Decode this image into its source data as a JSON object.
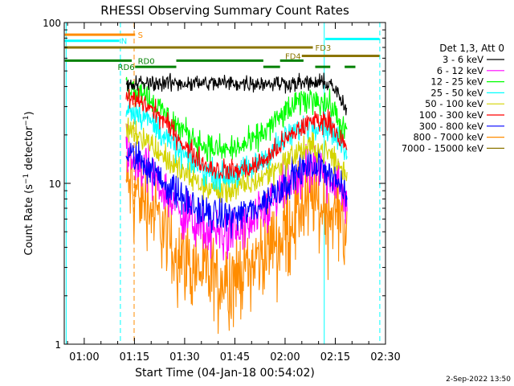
{
  "chart_data": {
    "type": "line",
    "title": "RHESSI Observing Summary Count Rates",
    "xlabel": "Start Time (04-Jan-18 00:54:02)",
    "ylabel": "Count Rate (s⁻¹ detector⁻¹)",
    "ylabel_parts": {
      "main": "Count Rate (s",
      "exp1": "−1",
      "mid": " detector",
      "exp2": "−1",
      "end": ")"
    },
    "yscale": "log",
    "ylim": [
      1,
      100
    ],
    "xlim_minutes": [
      54.03,
      150.0
    ],
    "y_ticks": [
      {
        "value": 1,
        "label": "1"
      },
      {
        "value": 10,
        "label": "10"
      },
      {
        "value": 100,
        "label": "100"
      }
    ],
    "x_ticks": [
      {
        "value": 60,
        "label": "01:00"
      },
      {
        "value": 75,
        "label": "01:15"
      },
      {
        "value": 90,
        "label": "01:30"
      },
      {
        "value": 105,
        "label": "01:45"
      },
      {
        "value": 120,
        "label": "02:00"
      },
      {
        "value": 135,
        "label": "02:15"
      },
      {
        "value": 150,
        "label": "02:30"
      }
    ],
    "legend_title": "Det 1,3, Att 0",
    "legend_position": "right",
    "series": [
      {
        "name": "3 - 6 keV",
        "color": "#000000",
        "profile": [
          40,
          42,
          42,
          42,
          42,
          42,
          42,
          42,
          42,
          42,
          42,
          42,
          42,
          42,
          28
        ],
        "noise": 0.06
      },
      {
        "name": "6 - 12 keV",
        "color": "#ff00ff",
        "profile": [
          15,
          13,
          10,
          7.5,
          6,
          5,
          4.8,
          5,
          5.5,
          7,
          9,
          11,
          12,
          11,
          8
        ],
        "noise": 0.18
      },
      {
        "name": "12 - 25 keV",
        "color": "#00ff00",
        "profile": [
          40,
          38,
          30,
          24,
          20,
          17,
          16,
          16.5,
          18,
          22,
          27,
          32,
          34,
          30,
          20
        ],
        "noise": 0.1
      },
      {
        "name": "25 - 50 keV",
        "color": "#00ffff",
        "profile": [
          30,
          27,
          22,
          17,
          14,
          12,
          11,
          11.5,
          12.5,
          15,
          18.5,
          22,
          24,
          22,
          15
        ],
        "noise": 0.1
      },
      {
        "name": "50 - 100 keV",
        "color": "#d4d400",
        "profile": [
          22,
          20,
          16,
          13,
          11,
          9.5,
          9,
          9.3,
          10,
          11.5,
          13.5,
          16,
          17,
          15,
          11
        ],
        "noise": 0.1
      },
      {
        "name": "100 - 300 keV",
        "color": "#ff0000",
        "profile": [
          34,
          32,
          27,
          21,
          16,
          13,
          12,
          12,
          12.5,
          14.5,
          18,
          22,
          25,
          24,
          16
        ],
        "noise": 0.08
      },
      {
        "name": "300 - 800 keV",
        "color": "#0000ff",
        "profile": [
          15,
          14,
          11,
          9,
          7.5,
          6.5,
          6.2,
          6.3,
          6.8,
          8,
          10,
          12,
          13,
          12,
          8
        ],
        "noise": 0.12
      },
      {
        "name": "800 - 7000 keV",
        "color": "#ff8c00",
        "profile": [
          10,
          8.5,
          6,
          4.2,
          3.2,
          2.8,
          2.6,
          2.8,
          3.2,
          4.2,
          5.5,
          7,
          8,
          7.5,
          6
        ],
        "noise": 0.3
      },
      {
        "name": "7000 - 15000 keV",
        "color": "#8b7500",
        "profile": [],
        "noise": 0
      }
    ],
    "series_time_range_minutes": [
      72.5,
      138.5
    ],
    "state_bars": [
      {
        "label": "S",
        "color": "#ff8c00",
        "y_rate": 84,
        "segments": [
          [
            54.2,
            75.2
          ]
        ],
        "label_at": 76
      },
      {
        "label": "N",
        "color": "#00ffff",
        "y_rate": 77,
        "segments": [
          [
            54.2,
            70.5
          ]
        ],
        "label_at": 71
      },
      {
        "label": "",
        "color": "#00ffff",
        "y_rate": 79,
        "segments": [
          [
            132.0,
            148.2
          ]
        ],
        "label_at": 0
      },
      {
        "label": "FD3",
        "color": "#8b7500",
        "y_rate": 70,
        "segments": [
          [
            54.2,
            128.3
          ]
        ],
        "label_at": 129
      },
      {
        "label": "FD4",
        "color": "#8b7500",
        "y_rate": 62,
        "segments": [
          [
            125.0,
            148.2
          ]
        ],
        "label_at": 120
      },
      {
        "label": "RD0",
        "color": "#008000",
        "y_rate": 58,
        "segments": [
          [
            54.2,
            74.2
          ],
          [
            87.5,
            113.5
          ],
          [
            118.5,
            125.5
          ]
        ],
        "label_at": 76
      },
      {
        "label": "RD6",
        "color": "#008000",
        "y_rate": 53,
        "segments": [
          [
            75.2,
            87.5
          ],
          [
            113.5,
            118.5
          ],
          [
            129.0,
            133.5
          ],
          [
            137.8,
            141.0
          ]
        ],
        "label_at": 70
      }
    ],
    "vertical_lines": [
      {
        "minutes": 54.6,
        "color": "#00ffff",
        "style": "solid"
      },
      {
        "minutes": 70.8,
        "color": "#00ffff",
        "style": "dashed"
      },
      {
        "minutes": 74.9,
        "color": "#ff8c00",
        "style": "dashed"
      },
      {
        "minutes": 131.7,
        "color": "#00ffff",
        "style": "solid"
      },
      {
        "minutes": 148.3,
        "color": "#00ffff",
        "style": "dashed"
      }
    ],
    "grid": false
  },
  "footer_timestamp": "2-Sep-2022 13:50"
}
